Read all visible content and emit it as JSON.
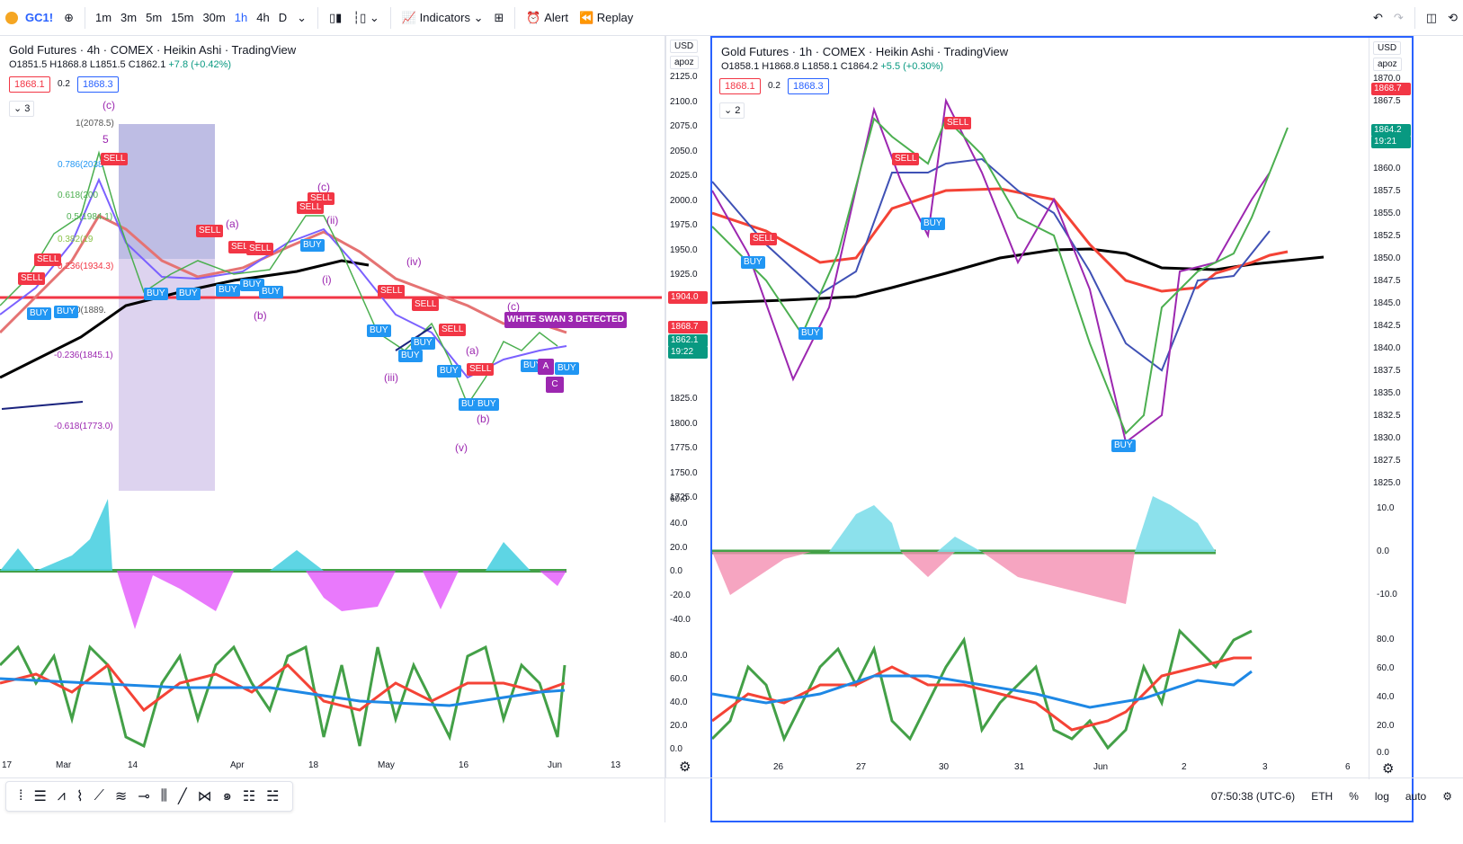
{
  "toolbar": {
    "symbol": "GC1!",
    "timeframes": [
      "1m",
      "3m",
      "5m",
      "15m",
      "30m",
      "1h",
      "4h",
      "D"
    ],
    "active_timeframe": "1h",
    "indicators_label": "Indicators",
    "alert_label": "Alert",
    "replay_label": "Replay"
  },
  "left_chart": {
    "title": "Gold Futures · 4h · COMEX · Heikin Ashi · TradingView",
    "ohlc": "O1851.5 H1868.8 L1851.5 C1862.1",
    "change": "+7.8 (+0.42%)",
    "bid": "1868.1",
    "spread": "0.2",
    "ask": "1868.3",
    "collapse": "3",
    "currency": "USD",
    "scale": "apoz",
    "price_axis": [
      "2125.0",
      "2100.0",
      "2075.0",
      "2050.0",
      "2025.0",
      "2000.0",
      "1975.0",
      "1950.0",
      "1925.0",
      "1900.0",
      "1875.0",
      "1850.0",
      "1825.0",
      "1800.0",
      "1775.0",
      "1750.0",
      "1725.0"
    ],
    "time_axis": [
      "17",
      "Mar",
      "14",
      "Apr",
      "18",
      "May",
      "16",
      "Jun",
      "13"
    ],
    "osc_axis": [
      "60.0",
      "40.0",
      "20.0",
      "0.0",
      "-20.0",
      "-40.0"
    ],
    "rsi_axis": [
      "80.0",
      "60.0",
      "40.0",
      "20.0",
      "0.0"
    ],
    "level_price": "1904.0",
    "current_price": "1868.7",
    "last_price": "1862.1",
    "countdown": "19:22",
    "fib_levels": [
      "1(2078.5)",
      "0.786(2038",
      "0.618(200",
      "0.5(1984.1)",
      "0.382(19",
      "0.236(1934.3)",
      "0(1889.",
      "-0.236(1845.1)",
      "-0.618(1773.0)"
    ],
    "waves": [
      "(c)",
      "5",
      "(a)",
      "(b)",
      "(c)",
      "(ii)",
      "(i)",
      "(iv)",
      "(iii)",
      "(v)",
      "(a)",
      "(b)",
      "(c)"
    ],
    "white_swan": "WHITE SWAN 3 DETECTED",
    "labels": {
      "sell": "SELL",
      "buy": "BUY",
      "a": "A",
      "c": "C"
    }
  },
  "right_chart": {
    "title": "Gold Futures · 1h · COMEX · Heikin Ashi · TradingView",
    "ohlc": "O1858.1 H1868.8 L1858.1 C1864.2",
    "change": "+5.5 (+0.30%)",
    "bid": "1868.1",
    "spread": "0.2",
    "ask": "1868.3",
    "collapse": "2",
    "currency": "USD",
    "scale": "apoz",
    "price_axis": [
      "1870.0",
      "1867.5",
      "1865.0",
      "1862.5",
      "1860.0",
      "1857.5",
      "1855.0",
      "1852.5",
      "1850.0",
      "1847.5",
      "1845.0",
      "1842.5",
      "1840.0",
      "1837.5",
      "1835.0",
      "1832.5",
      "1830.0",
      "1827.5",
      "1825.0"
    ],
    "time_axis": [
      "26",
      "27",
      "30",
      "31",
      "Jun",
      "2",
      "3",
      "6"
    ],
    "osc_axis": [
      "10.0",
      "0.0",
      "-10.0"
    ],
    "rsi_axis": [
      "80.0",
      "60.0",
      "40.0",
      "20.0",
      "0.0"
    ],
    "current_price": "1868.7",
    "last_price": "1864.2",
    "countdown": "19:21"
  },
  "status": {
    "time": "07:50:38 (UTC-6)",
    "session": "ETH",
    "percent": "%",
    "log": "log",
    "auto": "auto"
  }
}
